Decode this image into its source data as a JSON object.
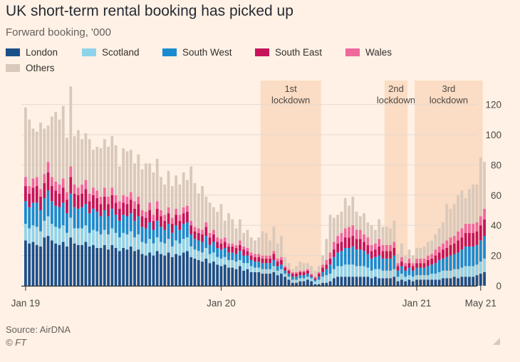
{
  "title": "UK short-term rental booking has picked up",
  "subtitle": "Forward booking, '000",
  "source": "Source: AirDNA",
  "credit": "© FT",
  "legend": [
    {
      "label": "London",
      "color": "#1b4f8a"
    },
    {
      "label": "Scotland",
      "color": "#8fd3ea"
    },
    {
      "label": "South West",
      "color": "#1a8bd1"
    },
    {
      "label": "South East",
      "color": "#c6135a"
    },
    {
      "label": "Wales",
      "color": "#f0679e"
    },
    {
      "label": "Others",
      "color": "#d9c9bc"
    }
  ],
  "chart_data": {
    "type": "bar",
    "stacked": true,
    "x_start": "Jan 19",
    "x_step_weeks": 1,
    "x_ticks": [
      "Jan 19",
      "Jan 20",
      "Jan 21",
      "May 21"
    ],
    "y_ticks": [
      0,
      20,
      40,
      60,
      80,
      100,
      120
    ],
    "ylim": [
      0,
      130
    ],
    "grid": true,
    "legend_position": "top",
    "shaded_periods": [
      {
        "label": [
          "1st",
          "lockdown"
        ],
        "start_week": 63,
        "end_week": 78
      },
      {
        "label": [
          "2nd",
          "lockdown"
        ],
        "start_week": 96,
        "end_week": 101
      },
      {
        "label": [
          "3rd",
          "lockdown"
        ],
        "start_week": 104,
        "end_week": 121
      }
    ],
    "series": [
      {
        "name": "London",
        "color": "#1b4f8a",
        "values": [
          30,
          28,
          29,
          27,
          26,
          32,
          33,
          30,
          28,
          27,
          29,
          26,
          32,
          28,
          27,
          27,
          29,
          26,
          27,
          25,
          25,
          27,
          24,
          27,
          25,
          23,
          25,
          24,
          26,
          23,
          24,
          21,
          20,
          22,
          20,
          23,
          21,
          20,
          22,
          19,
          21,
          20,
          22,
          23,
          19,
          18,
          17,
          16,
          18,
          15,
          16,
          14,
          13,
          14,
          12,
          12,
          11,
          13,
          10,
          11,
          9,
          9,
          9,
          8,
          8,
          8,
          9,
          7,
          8,
          6,
          4,
          2,
          2,
          3,
          3,
          4,
          3,
          1,
          1,
          2,
          2,
          3,
          5,
          6,
          6,
          6,
          6,
          6,
          6,
          6,
          6,
          6,
          5,
          6,
          5,
          5,
          5,
          5,
          6,
          3,
          4,
          3,
          4,
          3,
          4,
          4,
          4,
          4,
          4,
          4,
          4,
          5,
          5,
          5,
          6,
          5,
          6,
          6,
          6,
          6,
          7,
          8,
          9
        ]
      },
      {
        "name": "Scotland",
        "color": "#8fd3ea",
        "values": [
          11,
          10,
          11,
          12,
          10,
          11,
          13,
          11,
          11,
          11,
          11,
          9,
          13,
          10,
          11,
          11,
          11,
          9,
          10,
          11,
          9,
          10,
          10,
          11,
          10,
          9,
          10,
          10,
          10,
          9,
          10,
          8,
          8,
          9,
          8,
          9,
          8,
          8,
          9,
          7,
          9,
          8,
          9,
          9,
          7,
          6,
          6,
          6,
          7,
          6,
          6,
          5,
          5,
          5,
          5,
          5,
          5,
          4,
          5,
          4,
          4,
          3,
          3,
          3,
          3,
          3,
          4,
          3,
          3,
          2,
          2,
          2,
          2,
          2,
          2,
          2,
          2,
          2,
          3,
          4,
          5,
          5,
          6,
          7,
          7,
          8,
          8,
          8,
          7,
          7,
          7,
          6,
          5,
          5,
          6,
          5,
          5,
          5,
          5,
          3,
          4,
          3,
          3,
          3,
          3,
          3,
          3,
          3,
          4,
          4,
          5,
          5,
          5,
          5,
          5,
          6,
          6,
          7,
          7,
          7,
          7,
          8,
          9
        ]
      },
      {
        "name": "South West",
        "color": "#1a8bd1",
        "values": [
          15,
          14,
          15,
          16,
          14,
          15,
          17,
          15,
          14,
          14,
          15,
          13,
          16,
          14,
          13,
          14,
          14,
          13,
          14,
          13,
          12,
          13,
          12,
          13,
          12,
          11,
          12,
          12,
          12,
          11,
          12,
          10,
          10,
          11,
          9,
          11,
          10,
          9,
          10,
          9,
          10,
          9,
          10,
          10,
          8,
          7,
          7,
          7,
          8,
          6,
          7,
          6,
          6,
          6,
          5,
          5,
          5,
          6,
          5,
          5,
          4,
          4,
          4,
          4,
          4,
          4,
          4,
          3,
          3,
          2,
          2,
          2,
          2,
          2,
          2,
          2,
          1,
          1,
          2,
          3,
          4,
          6,
          8,
          9,
          10,
          11,
          11,
          12,
          11,
          11,
          10,
          9,
          8,
          8,
          9,
          8,
          8,
          8,
          9,
          4,
          5,
          4,
          5,
          4,
          5,
          5,
          5,
          6,
          6,
          7,
          8,
          8,
          9,
          10,
          10,
          11,
          12,
          13,
          13,
          13,
          13,
          14,
          15
        ]
      },
      {
        "name": "South East",
        "color": "#c6135a",
        "values": [
          10,
          9,
          10,
          11,
          9,
          10,
          12,
          10,
          10,
          9,
          10,
          9,
          11,
          9,
          9,
          9,
          10,
          8,
          9,
          9,
          8,
          9,
          8,
          9,
          8,
          8,
          8,
          8,
          9,
          8,
          8,
          7,
          7,
          8,
          6,
          8,
          7,
          6,
          7,
          6,
          7,
          6,
          7,
          7,
          6,
          5,
          5,
          5,
          6,
          5,
          5,
          4,
          4,
          4,
          4,
          4,
          4,
          4,
          4,
          3,
          3,
          3,
          3,
          3,
          3,
          3,
          4,
          3,
          3,
          2,
          2,
          2,
          2,
          2,
          2,
          2,
          1,
          1,
          2,
          3,
          3,
          4,
          5,
          6,
          6,
          7,
          7,
          7,
          7,
          7,
          6,
          6,
          5,
          5,
          6,
          5,
          5,
          5,
          5,
          3,
          3,
          3,
          3,
          3,
          3,
          3,
          3,
          4,
          4,
          5,
          5,
          6,
          6,
          7,
          7,
          8,
          8,
          9,
          9,
          9,
          9,
          10,
          11
        ]
      },
      {
        "name": "Wales",
        "color": "#f0679e",
        "values": [
          6,
          5,
          6,
          6,
          5,
          6,
          7,
          6,
          6,
          6,
          6,
          5,
          7,
          6,
          5,
          6,
          6,
          5,
          5,
          5,
          5,
          6,
          5,
          5,
          5,
          5,
          5,
          5,
          5,
          5,
          5,
          4,
          4,
          5,
          4,
          5,
          4,
          4,
          4,
          4,
          4,
          4,
          4,
          4,
          3,
          3,
          3,
          3,
          3,
          3,
          3,
          3,
          3,
          3,
          2,
          2,
          2,
          3,
          2,
          2,
          2,
          2,
          2,
          2,
          2,
          2,
          2,
          2,
          2,
          1,
          1,
          1,
          1,
          1,
          1,
          1,
          1,
          1,
          1,
          2,
          3,
          4,
          5,
          5,
          6,
          6,
          7,
          7,
          6,
          6,
          5,
          5,
          4,
          4,
          5,
          4,
          4,
          4,
          4,
          2,
          3,
          2,
          3,
          2,
          3,
          3,
          3,
          3,
          3,
          4,
          4,
          4,
          5,
          5,
          5,
          6,
          6,
          6,
          6,
          6,
          6,
          6,
          7
        ]
      },
      {
        "name": "Others",
        "color": "#d9c9bc",
        "values": [
          46,
          44,
          33,
          30,
          44,
          30,
          24,
          40,
          46,
          43,
          48,
          36,
          53,
          32,
          38,
          30,
          31,
          36,
          25,
          29,
          32,
          32,
          33,
          34,
          33,
          23,
          31,
          30,
          28,
          25,
          28,
          27,
          32,
          26,
          28,
          28,
          22,
          20,
          24,
          21,
          22,
          20,
          23,
          17,
          36,
          29,
          23,
          29,
          17,
          20,
          15,
          17,
          23,
          11,
          20,
          16,
          11,
          14,
          9,
          12,
          10,
          9,
          11,
          16,
          15,
          10,
          16,
          10,
          14,
          6,
          4,
          2,
          4,
          6,
          5,
          4,
          5,
          4,
          4,
          6,
          14,
          25,
          16,
          14,
          14,
          20,
          14,
          19,
          12,
          9,
          14,
          10,
          13,
          9,
          13,
          12,
          12,
          11,
          14,
          6,
          9,
          5,
          6,
          5,
          7,
          7,
          8,
          9,
          9,
          10,
          12,
          14,
          24,
          19,
          21,
          24,
          25,
          17,
          23,
          26,
          25,
          39,
          31
        ]
      }
    ]
  }
}
